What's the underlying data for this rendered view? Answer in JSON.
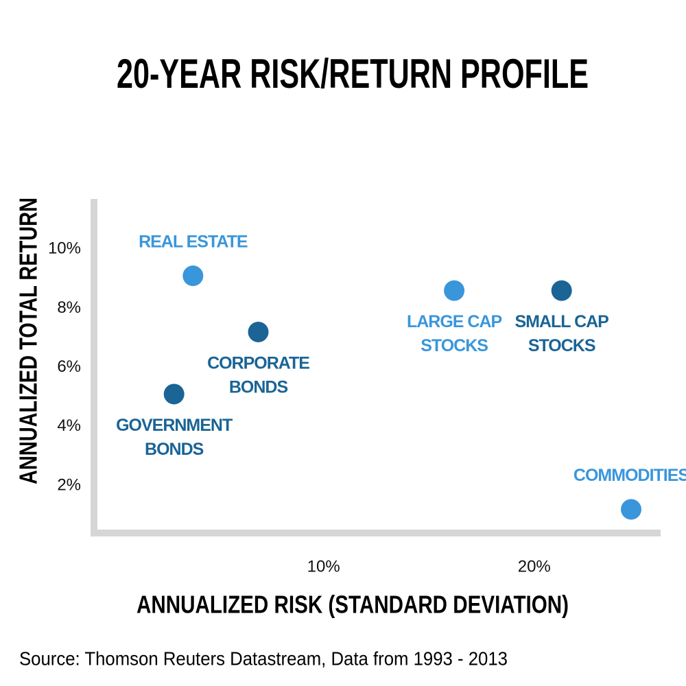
{
  "chart_data": {
    "type": "scatter",
    "title": "20-YEAR RISK/RETURN PROFILE",
    "xlabel": "ANNUALIZED RISK (STANDARD DEVIATION)",
    "ylabel": "ANNUALIZED TOTAL RETURN",
    "source": "Source: Thomson Reuters Datastream, Data from 1993 - 2013",
    "xlim": [
      -0.9,
      26
    ],
    "ylim": [
      0.4,
      11.7
    ],
    "xticks": [
      {
        "value": 10,
        "label": "10%"
      },
      {
        "value": 20,
        "label": "20%"
      }
    ],
    "yticks": [
      {
        "value": 2,
        "label": "2%"
      },
      {
        "value": 4,
        "label": "4%"
      },
      {
        "value": 6,
        "label": "6%"
      },
      {
        "value": 8,
        "label": "8%"
      },
      {
        "value": 10,
        "label": "10%"
      }
    ],
    "points": [
      {
        "name": [
          "REAL ESTATE"
        ],
        "x": 3.8,
        "y": 9.1,
        "color": "#3a96db",
        "label_position": "above"
      },
      {
        "name": [
          "CORPORATE",
          "BONDS"
        ],
        "x": 6.9,
        "y": 7.2,
        "color": "#1a6496",
        "label_position": "below"
      },
      {
        "name": [
          "GOVERNMENT",
          "BONDS"
        ],
        "x": 2.9,
        "y": 5.1,
        "color": "#1a6496",
        "label_position": "below"
      },
      {
        "name": [
          "LARGE CAP",
          "STOCKS"
        ],
        "x": 16.2,
        "y": 8.6,
        "color": "#3a96db",
        "label_position": "below"
      },
      {
        "name": [
          "SMALL CAP",
          "STOCKS"
        ],
        "x": 21.3,
        "y": 8.6,
        "color": "#1a6496",
        "label_position": "below"
      },
      {
        "name": [
          "COMMODITIES"
        ],
        "x": 24.6,
        "y": 1.2,
        "color": "#3a96db",
        "label_position": "above"
      }
    ]
  }
}
